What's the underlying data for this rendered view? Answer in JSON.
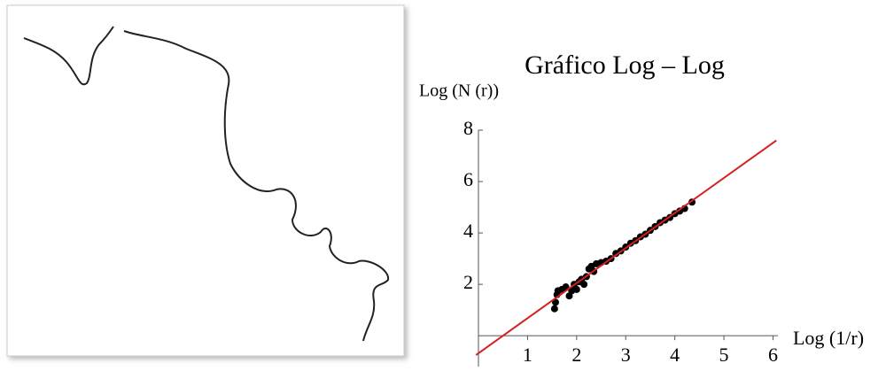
{
  "chart_data": {
    "type": "scatter",
    "title": "Gráfico Log – Log",
    "y_label": "Log (N (r))",
    "x_label": "Log (1/r)",
    "xlim": [
      0,
      6.1
    ],
    "ylim": [
      -1.2,
      8
    ],
    "xticks": [
      1,
      2,
      3,
      4,
      5,
      6
    ],
    "yticks": [
      2,
      4,
      6,
      8
    ],
    "series": [
      {
        "color": "#000000",
        "x": [
          1.55,
          1.57,
          1.6,
          1.62,
          1.7,
          1.78,
          1.85,
          1.9,
          1.95,
          2.0,
          2.05,
          2.1,
          2.15,
          2.2,
          2.25,
          2.3,
          2.35,
          2.4,
          2.5,
          2.6,
          2.7,
          2.8,
          2.9,
          3.0,
          3.1,
          3.2,
          3.3,
          3.4,
          3.5,
          3.6,
          3.7,
          3.8,
          3.9,
          4.0,
          4.1,
          4.2,
          4.35
        ],
        "values": [
          1.05,
          1.3,
          1.6,
          1.75,
          1.8,
          1.9,
          1.55,
          1.75,
          2.0,
          1.8,
          2.1,
          2.2,
          2.0,
          2.3,
          2.6,
          2.7,
          2.5,
          2.8,
          2.85,
          2.9,
          3.0,
          3.2,
          3.3,
          3.45,
          3.6,
          3.7,
          3.85,
          3.95,
          4.1,
          4.25,
          4.4,
          4.5,
          4.6,
          4.75,
          4.85,
          4.95,
          5.2
        ]
      },
      {
        "type": "line",
        "color": "#d62020",
        "x": [
          -0.05,
          6.07
        ],
        "values": [
          -0.75,
          7.6
        ]
      }
    ]
  }
}
